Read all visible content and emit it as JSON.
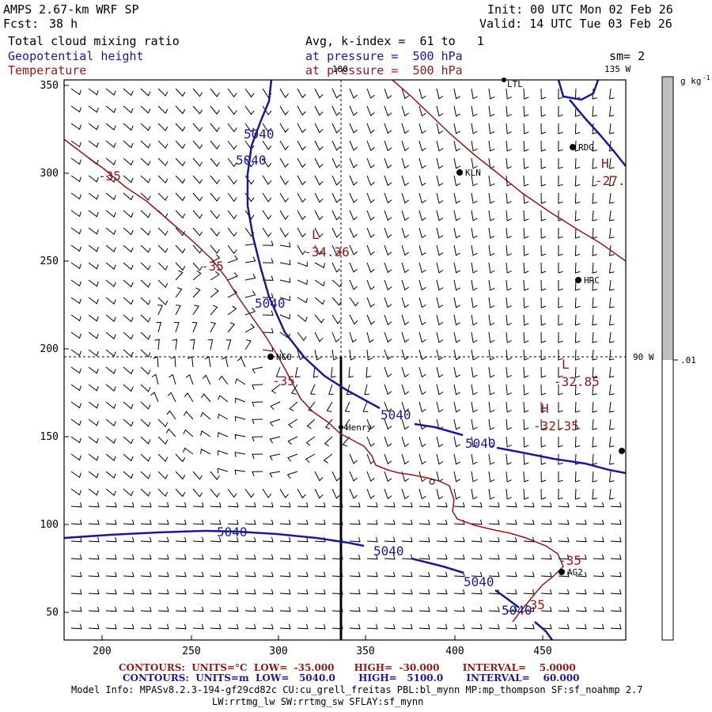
{
  "header": {
    "model": "AMPS 2.67-km WRF SP",
    "fcst_label": "Fcst:",
    "fcst_value": "38 h",
    "init": "Init: 00 UTC Mon 02 Feb 26",
    "valid": "Valid: 14 UTC Tue 03 Feb 26",
    "field1": "Total cloud mixing ratio",
    "field2": "Geopotential height",
    "field3": "Temperature",
    "avg": "Avg, k-index =  61 to   1",
    "press1": "at pressure =  500 hPa",
    "press2": "at pressure =  500 hPa",
    "sm": "sm= 2"
  },
  "map": {
    "x_ticks": [
      "200",
      "250",
      "300",
      "350",
      "400",
      "450"
    ],
    "y_ticks": [
      "350",
      "300",
      "250",
      "200",
      "150",
      "100",
      "50"
    ],
    "lon_180": "180",
    "lon_135w": "135 W",
    "lon_90w": "90 W",
    "stations": [
      "RDG",
      "KLN",
      "HRC",
      "NCO",
      "Henry",
      "AG2",
      "LTL"
    ],
    "height_labels": [
      "5040",
      "5040",
      "5040",
      "5040",
      "5040",
      "5040",
      "5040",
      "5040",
      "5040"
    ],
    "temp_labels": [
      "-35",
      "-35",
      "-35",
      "-35",
      "-35"
    ],
    "extrema": {
      "low1": {
        "mark": "L",
        "value": "-34.36"
      },
      "high1": {
        "mark": "H",
        "value": "-27."
      },
      "low2": {
        "mark": "L",
        "value": "-32.85"
      },
      "high2": {
        "mark": "H",
        "value": "-32.35"
      }
    }
  },
  "colorbar": {
    "unit": "g kg",
    "unit_exp": "-1",
    "value": ".01",
    "fill_color": "#c0c0c0"
  },
  "footer": {
    "contours_temp": "CONTOURS:  UNITS=°C  LOW=  -35.000      HIGH=  -30.000       INTERVAL=    5.0000",
    "contours_height": "CONTOURS:  UNITS=m  LOW=   5040.0       HIGH=   5100.0       INTERVAL=    60.000",
    "model_info": "Model Info: MPASv8.2.3-194-gf29cd82c CU:cu_grell_freitas PBL:bl_mynn MP:mp_thompson SF:sf_noahmp 2.7",
    "model_info2": "LW:rrtmg_lw SW:rrtmg_sw SFLAY:sf_mynn"
  },
  "colors": {
    "height": "#1a1a8c",
    "temperature": "#8b1a1a",
    "barb": "#000000"
  }
}
